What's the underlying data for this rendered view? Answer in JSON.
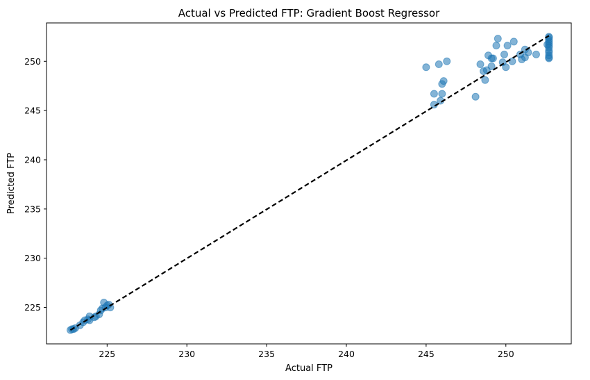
{
  "chart_data": {
    "type": "scatter",
    "title": "Actual vs Predicted FTP: Gradient Boost Regressor",
    "xlabel": "Actual FTP",
    "ylabel": "Predicted FTP",
    "xlim": [
      221.2,
      254.1
    ],
    "ylim": [
      221.3,
      253.9
    ],
    "xticks": [
      225,
      230,
      235,
      240,
      245,
      250
    ],
    "yticks": [
      225,
      230,
      235,
      240,
      245,
      250
    ],
    "grid": false,
    "legend": "none",
    "point_color": "#1f77b4",
    "point_alpha": 0.55,
    "reference_line": {
      "x": [
        222.7,
        252.7
      ],
      "y": [
        222.7,
        252.6
      ],
      "color": "#000000",
      "style": "dashed"
    },
    "points": [
      {
        "x": 222.7,
        "y": 222.7
      },
      {
        "x": 222.8,
        "y": 222.8
      },
      {
        "x": 222.9,
        "y": 222.8
      },
      {
        "x": 223.0,
        "y": 222.9
      },
      {
        "x": 223.3,
        "y": 223.2
      },
      {
        "x": 223.5,
        "y": 223.5
      },
      {
        "x": 223.6,
        "y": 223.7
      },
      {
        "x": 223.8,
        "y": 223.8
      },
      {
        "x": 223.9,
        "y": 224.1
      },
      {
        "x": 223.9,
        "y": 223.7
      },
      {
        "x": 224.2,
        "y": 224.0
      },
      {
        "x": 224.3,
        "y": 224.1
      },
      {
        "x": 224.5,
        "y": 224.3
      },
      {
        "x": 224.6,
        "y": 224.7
      },
      {
        "x": 224.7,
        "y": 224.9
      },
      {
        "x": 224.8,
        "y": 225.5
      },
      {
        "x": 224.9,
        "y": 225.0
      },
      {
        "x": 225.0,
        "y": 225.2
      },
      {
        "x": 225.1,
        "y": 225.3
      },
      {
        "x": 225.2,
        "y": 225.0
      },
      {
        "x": 245.0,
        "y": 249.4
      },
      {
        "x": 245.5,
        "y": 245.6
      },
      {
        "x": 245.5,
        "y": 246.7
      },
      {
        "x": 245.8,
        "y": 249.7
      },
      {
        "x": 245.9,
        "y": 246.0
      },
      {
        "x": 246.0,
        "y": 246.7
      },
      {
        "x": 246.0,
        "y": 247.7
      },
      {
        "x": 246.1,
        "y": 248.0
      },
      {
        "x": 246.3,
        "y": 250.0
      },
      {
        "x": 248.1,
        "y": 246.4
      },
      {
        "x": 248.4,
        "y": 249.7
      },
      {
        "x": 248.6,
        "y": 249.0
      },
      {
        "x": 248.7,
        "y": 248.1
      },
      {
        "x": 248.8,
        "y": 249.1
      },
      {
        "x": 248.9,
        "y": 250.6
      },
      {
        "x": 249.1,
        "y": 250.3
      },
      {
        "x": 249.1,
        "y": 249.5
      },
      {
        "x": 249.2,
        "y": 250.3
      },
      {
        "x": 249.4,
        "y": 251.6
      },
      {
        "x": 249.5,
        "y": 252.3
      },
      {
        "x": 249.8,
        "y": 249.9
      },
      {
        "x": 249.9,
        "y": 250.7
      },
      {
        "x": 250.0,
        "y": 249.4
      },
      {
        "x": 250.1,
        "y": 251.6
      },
      {
        "x": 250.4,
        "y": 250.0
      },
      {
        "x": 250.5,
        "y": 252.0
      },
      {
        "x": 250.9,
        "y": 250.7
      },
      {
        "x": 251.0,
        "y": 250.2
      },
      {
        "x": 251.2,
        "y": 251.2
      },
      {
        "x": 251.2,
        "y": 250.4
      },
      {
        "x": 251.4,
        "y": 250.9
      },
      {
        "x": 251.9,
        "y": 250.7
      },
      {
        "x": 252.7,
        "y": 250.3
      },
      {
        "x": 252.7,
        "y": 250.6
      },
      {
        "x": 252.7,
        "y": 250.9
      },
      {
        "x": 252.7,
        "y": 251.1
      },
      {
        "x": 252.7,
        "y": 251.4
      },
      {
        "x": 252.7,
        "y": 251.6
      },
      {
        "x": 252.7,
        "y": 251.8
      },
      {
        "x": 252.7,
        "y": 252.0
      },
      {
        "x": 252.7,
        "y": 252.2
      },
      {
        "x": 252.7,
        "y": 252.4
      },
      {
        "x": 252.7,
        "y": 252.5
      },
      {
        "x": 252.6,
        "y": 251.7
      },
      {
        "x": 252.7,
        "y": 250.4
      }
    ]
  }
}
